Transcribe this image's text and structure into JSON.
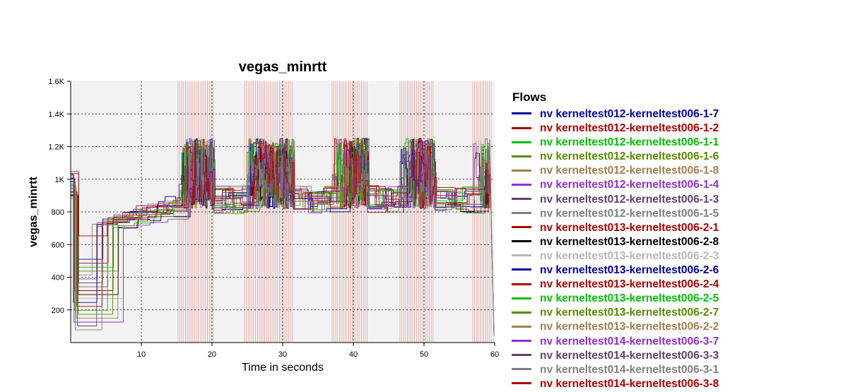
{
  "chart_data": {
    "type": "line",
    "title": "vegas_minrtt",
    "xlabel": "Time in seconds",
    "ylabel": "vegas_minrtt",
    "xlim": [
      0,
      60
    ],
    "ylim": [
      0,
      1600
    ],
    "x_ticks": [
      10,
      20,
      30,
      40,
      50,
      60
    ],
    "y_ticks": [
      200,
      400,
      600,
      800,
      1000,
      1200,
      1400,
      1600
    ],
    "y_tick_labels": [
      "200",
      "400",
      "600",
      "800",
      "1K",
      "1.2K",
      "1.4K",
      "1.6K"
    ],
    "grid": true,
    "legend_title": "Flows",
    "legend_position": "right",
    "shaded_intervals": [
      [
        15.2,
        20.2
      ],
      [
        24.6,
        31.5
      ],
      [
        37.0,
        42.0
      ],
      [
        46.6,
        51.5
      ],
      [
        56.9,
        59.5
      ]
    ],
    "series": [
      {
        "name": "nv kerneltest012-kerneltest006-1-7",
        "color": "#0000a8"
      },
      {
        "name": "nv kerneltest012-kerneltest006-1-2",
        "color": "#b00000"
      },
      {
        "name": "nv kerneltest012-kerneltest006-1-1",
        "color": "#00c000"
      },
      {
        "name": "nv kerneltest012-kerneltest006-1-6",
        "color": "#5a8a00"
      },
      {
        "name": "nv kerneltest012-kerneltest006-1-8",
        "color": "#a08050"
      },
      {
        "name": "nv kerneltest012-kerneltest006-1-4",
        "color": "#9030d0"
      },
      {
        "name": "nv kerneltest012-kerneltest006-1-3",
        "color": "#604070"
      },
      {
        "name": "nv kerneltest012-kerneltest006-1-5",
        "color": "#808080"
      },
      {
        "name": "nv kerneltest013-kerneltest006-2-1",
        "color": "#b00000"
      },
      {
        "name": "nv kerneltest013-kerneltest006-2-8",
        "color": "#000000"
      },
      {
        "name": "nv kerneltest013-kerneltest006-2-3",
        "color": "#b8b8b8"
      },
      {
        "name": "nv kerneltest013-kerneltest006-2-6",
        "color": "#0000a8"
      },
      {
        "name": "nv kerneltest013-kerneltest006-2-4",
        "color": "#b00000"
      },
      {
        "name": "nv kerneltest013-kerneltest006-2-5",
        "color": "#00c000"
      },
      {
        "name": "nv kerneltest013-kerneltest006-2-7",
        "color": "#5a8a00"
      },
      {
        "name": "nv kerneltest013-kerneltest006-2-2",
        "color": "#a08050"
      },
      {
        "name": "nv kerneltest014-kerneltest006-3-7",
        "color": "#9030d0"
      },
      {
        "name": "nv kerneltest014-kerneltest006-3-3",
        "color": "#604070"
      },
      {
        "name": "nv kerneltest014-kerneltest006-3-1",
        "color": "#808080"
      },
      {
        "name": "nv kerneltest014-kerneltest006-3-8",
        "color": "#b00000"
      }
    ]
  }
}
